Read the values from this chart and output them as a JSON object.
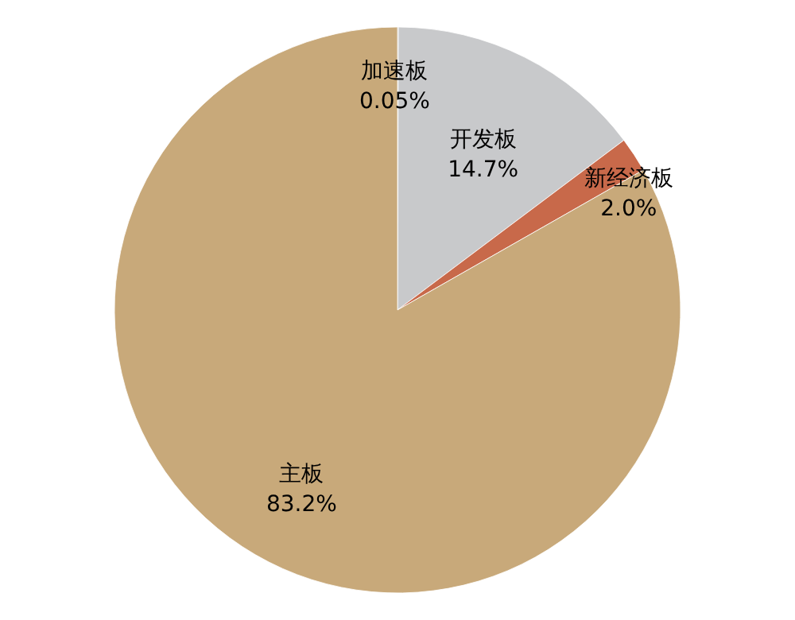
{
  "chart_data": {
    "type": "pie",
    "categories": [
      "加速板",
      "开发板",
      "新经济板",
      "主板"
    ],
    "values": [
      0.05,
      14.7,
      2.0,
      83.2
    ],
    "value_labels": [
      "0.05%",
      "14.7%",
      "2.0%",
      "83.2%"
    ],
    "colors": [
      "#8c8c8c",
      "#c8c9cb",
      "#c8694a",
      "#c8a97a"
    ]
  }
}
